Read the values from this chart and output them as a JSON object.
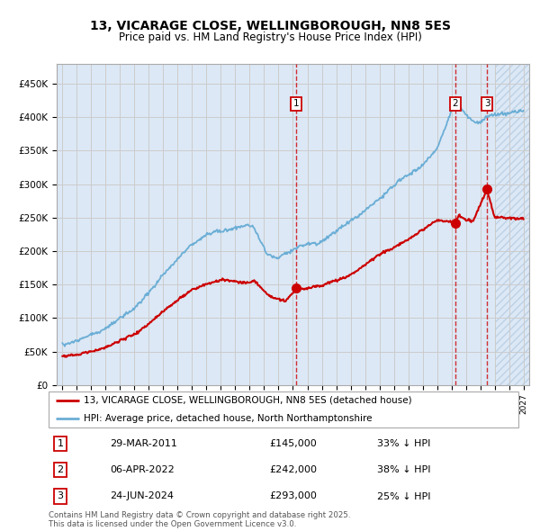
{
  "title_line1": "13, VICARAGE CLOSE, WELLINGBOROUGH, NN8 5ES",
  "title_line2": "Price paid vs. HM Land Registry's House Price Index (HPI)",
  "xlim": [
    1994.6,
    2027.4
  ],
  "ylim": [
    0,
    480000
  ],
  "yticks": [
    0,
    50000,
    100000,
    150000,
    200000,
    250000,
    300000,
    350000,
    400000,
    450000
  ],
  "ytick_labels": [
    "£0",
    "£50K",
    "£100K",
    "£150K",
    "£200K",
    "£250K",
    "£300K",
    "£350K",
    "£400K",
    "£450K"
  ],
  "sale_dates_num": [
    2011.24,
    2022.27,
    2024.48
  ],
  "sale_prices": [
    145000,
    242000,
    293000
  ],
  "sale_labels": [
    "1",
    "2",
    "3"
  ],
  "sale_date_strings": [
    "29-MAR-2011",
    "06-APR-2022",
    "24-JUN-2024"
  ],
  "sale_price_strings": [
    "£145,000",
    "£242,000",
    "£293,000"
  ],
  "sale_hpi_strings": [
    "33% ↓ HPI",
    "38% ↓ HPI",
    "25% ↓ HPI"
  ],
  "legend_line1": "13, VICARAGE CLOSE, WELLINGBOROUGH, NN8 5ES (detached house)",
  "legend_line2": "HPI: Average price, detached house, North Northamptonshire",
  "footnote": "Contains HM Land Registry data © Crown copyright and database right 2025.\nThis data is licensed under the Open Government Licence v3.0.",
  "hpi_color": "#6baed6",
  "price_color": "#cc0000",
  "grid_color": "#cccccc",
  "background_color": "#dce8f5",
  "hatch_area_start": 2025.0
}
